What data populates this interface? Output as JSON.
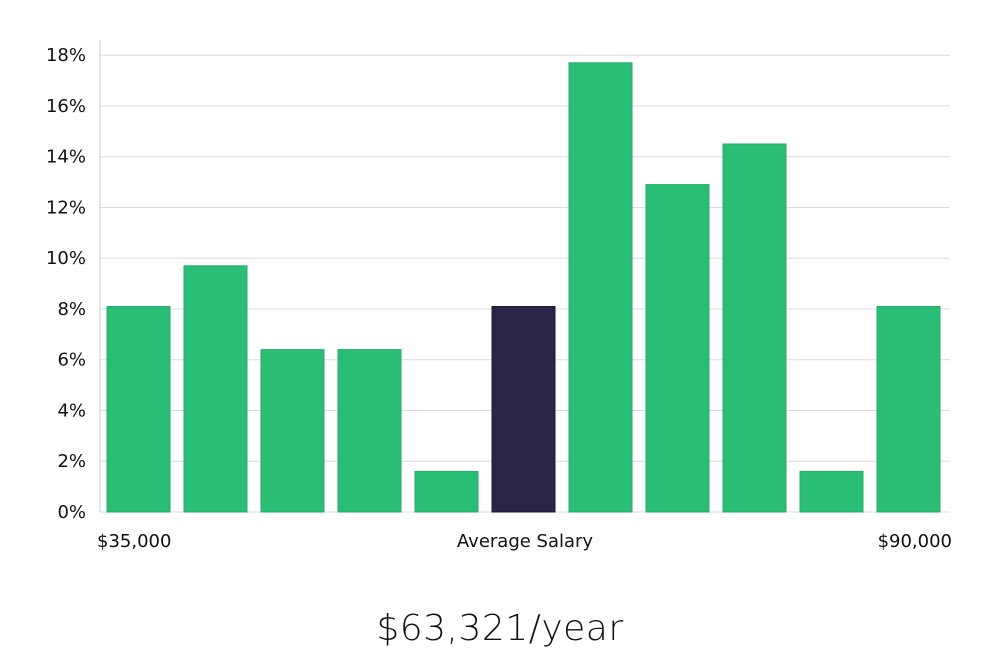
{
  "chart_data": {
    "type": "bar",
    "categories": [
      "",
      "",
      "",
      "",
      "",
      "",
      "",
      "",
      "",
      "",
      ""
    ],
    "values": [
      8.1,
      9.7,
      6.4,
      6.4,
      1.6,
      8.1,
      17.7,
      12.9,
      14.5,
      1.6,
      8.1
    ],
    "highlight_index": 5,
    "ylim": [
      0,
      18.6
    ],
    "yticks": [
      0,
      2,
      4,
      6,
      8,
      10,
      12,
      14,
      16,
      18
    ],
    "ytick_suffix": "%",
    "grid": true,
    "x_labels": {
      "left": "$35,000",
      "center": "Average Salary",
      "right": "$90,000"
    },
    "colors": {
      "bar": "#2abd76",
      "highlight": "#2a2547",
      "grid": "#dcdcdc",
      "axis": "#cccccc"
    }
  },
  "salary_summary": "$63,321/year"
}
